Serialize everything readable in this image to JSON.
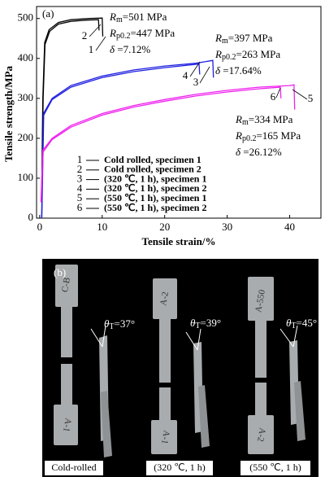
{
  "chart_data": {
    "type": "line",
    "panel": "(a)",
    "xlabel": "Tensile strain/%",
    "ylabel": "Tensile strength/MPa",
    "xlim": [
      -0.5,
      45
    ],
    "ylim": [
      0,
      530
    ],
    "xticks": [
      0,
      10,
      20,
      30,
      40
    ],
    "yticks": [
      0,
      100,
      200,
      300,
      400,
      500
    ],
    "series": [
      {
        "label": "1",
        "name": "Cold rolled, specimen 1",
        "color": "#000000",
        "x": [
          0.3,
          0.5,
          0.8,
          1.5,
          3,
          5,
          8,
          10,
          10.1
        ],
        "values": [
          40,
          300,
          440,
          472,
          490,
          497,
          500,
          501,
          455
        ]
      },
      {
        "label": "2",
        "name": "Cold rolled, specimen 2",
        "color": "#000000",
        "x": [
          0.35,
          0.55,
          0.85,
          1.6,
          3,
          5,
          7.5,
          9.4,
          9.5
        ],
        "values": [
          40,
          300,
          435,
          468,
          486,
          493,
          496,
          497,
          470
        ]
      },
      {
        "label": "3",
        "name": "(320 ℃, 1 h), specimen 1",
        "color": "#1f1fe0",
        "x": [
          0.3,
          0.6,
          2,
          5,
          10,
          15,
          20,
          25,
          27.7,
          27.8
        ],
        "values": [
          0,
          262,
          300,
          332,
          356,
          371,
          381,
          388,
          395,
          352
        ]
      },
      {
        "label": "4",
        "name": "(320 ℃, 1 h), specimen 2",
        "color": "#1f1fe0",
        "x": [
          0.35,
          0.65,
          2,
          5,
          10,
          15,
          20,
          25.5,
          25.6
        ],
        "values": [
          0,
          258,
          297,
          328,
          352,
          367,
          377,
          386,
          360
        ]
      },
      {
        "label": "5",
        "name": "(550 ℃, 1 h), specimen 1",
        "color": "#ee22ee",
        "x": [
          0.2,
          0.5,
          2,
          5,
          10,
          15,
          20,
          25,
          30,
          35,
          40,
          40.7,
          40.8
        ],
        "values": [
          40,
          170,
          200,
          232,
          262,
          282,
          297,
          310,
          320,
          328,
          332,
          334,
          272
        ]
      },
      {
        "label": "6",
        "name": "(550 ℃, 1 h), specimen 2",
        "color": "#ee22ee",
        "x": [
          0.25,
          0.55,
          2,
          5,
          10,
          15,
          20,
          25,
          30,
          35,
          38.5,
          38.6
        ],
        "values": [
          40,
          166,
          197,
          228,
          258,
          278,
          293,
          306,
          316,
          324,
          328,
          300
        ]
      }
    ],
    "annotations": [
      {
        "symbol": "R",
        "sub": "m",
        "text": "=501 MPa"
      },
      {
        "symbol": "R",
        "sub": "p0.2",
        "text": "=447 MPa"
      },
      {
        "symbol": "δ",
        "text": " =7.12%"
      },
      {
        "symbol": "R",
        "sub": "m",
        "text": "=397 MPa"
      },
      {
        "symbol": "R",
        "sub": "p0.2",
        "text": "=263 MPa"
      },
      {
        "symbol": "δ",
        "text": " =17.64%"
      },
      {
        "symbol": "R",
        "sub": "m",
        "text": "=334 MPa"
      },
      {
        "symbol": "R",
        "sub": "p0.2",
        "text": "=165 MPa"
      },
      {
        "symbol": "δ",
        "text": " =26.12%"
      }
    ]
  },
  "panel_b": {
    "panel": "(b)",
    "angles": [
      {
        "symbol": "θ",
        "sub": "T",
        "text": "=37°"
      },
      {
        "symbol": "θ",
        "sub": "T",
        "text": "=39°"
      },
      {
        "symbol": "θ",
        "sub": "T",
        "text": "=45°"
      }
    ],
    "captions": [
      "Cold-rolled",
      "(320 ℃, 1 h)",
      "(550 ℃, 1 h)"
    ],
    "specimen_marks": [
      "C-B",
      "A-2",
      "A-550",
      "A-1",
      "A-1",
      "A-2"
    ]
  }
}
